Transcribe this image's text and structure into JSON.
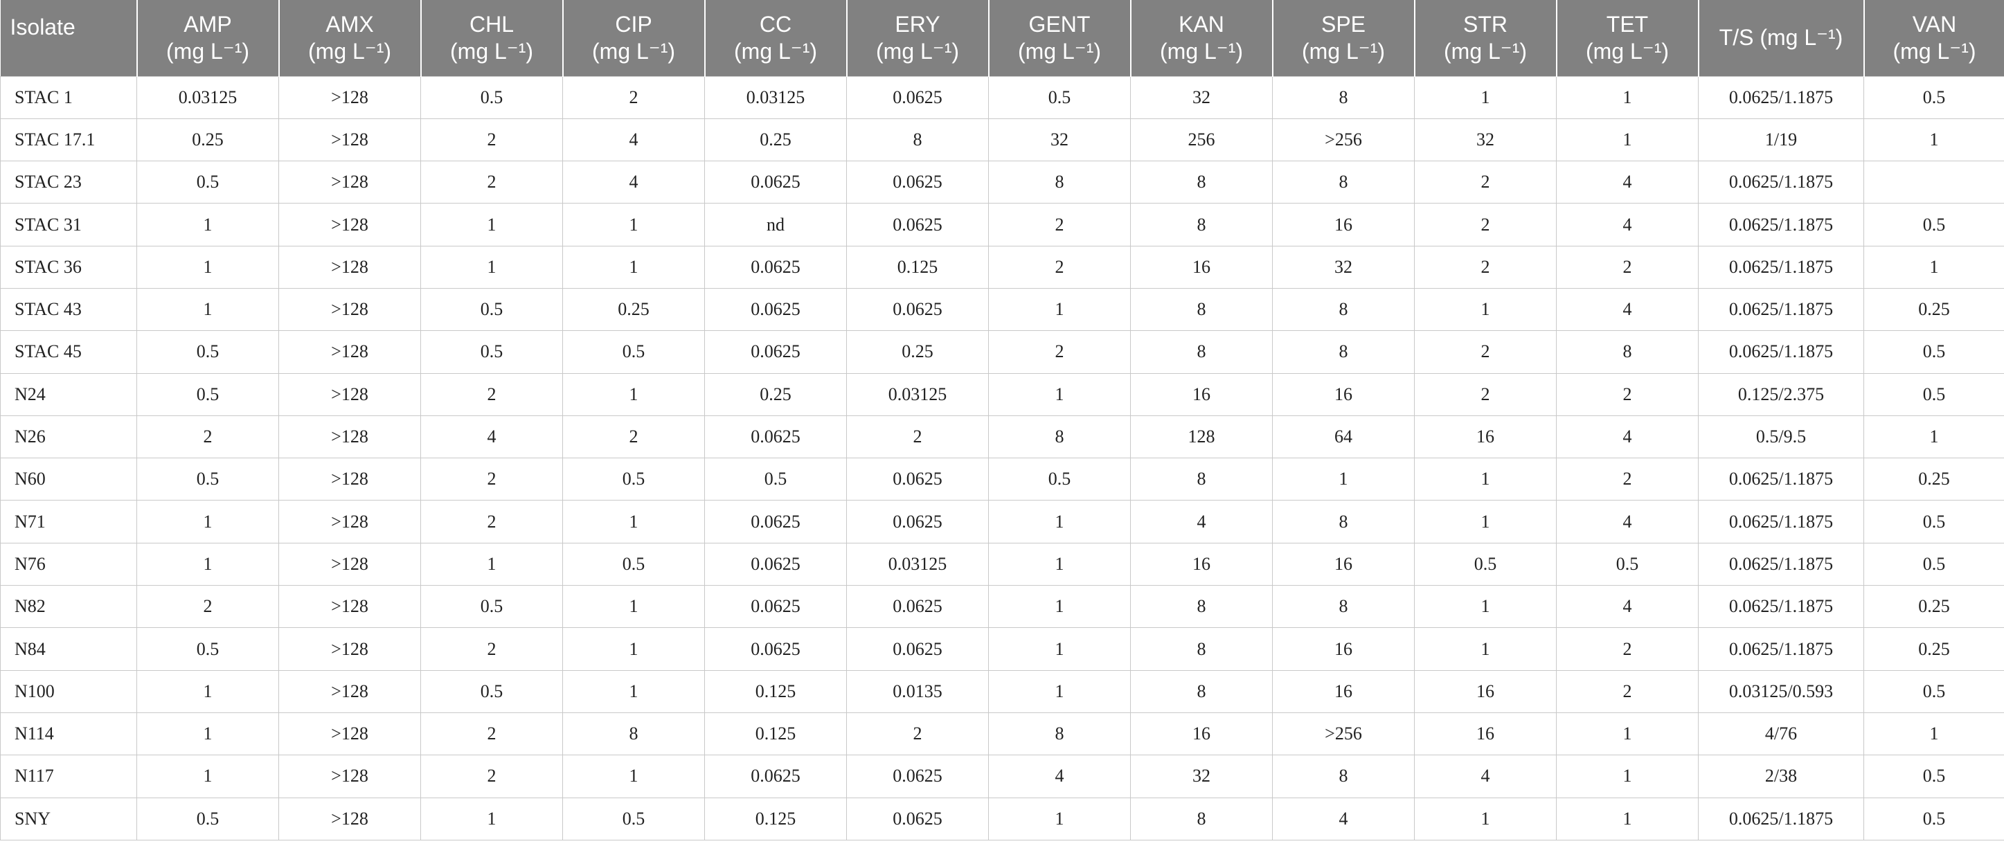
{
  "table": {
    "columns": [
      {
        "name": "Isolate",
        "unit": ""
      },
      {
        "name": "AMP",
        "unit": "(mg L⁻¹)"
      },
      {
        "name": "AMX",
        "unit": "(mg L⁻¹)"
      },
      {
        "name": "CHL",
        "unit": "(mg L⁻¹)"
      },
      {
        "name": "CIP",
        "unit": "(mg L⁻¹)"
      },
      {
        "name": "CC",
        "unit": "(mg L⁻¹)"
      },
      {
        "name": "ERY",
        "unit": "(mg L⁻¹)"
      },
      {
        "name": "GENT",
        "unit": "(mg L⁻¹)"
      },
      {
        "name": "KAN",
        "unit": "(mg L⁻¹)"
      },
      {
        "name": "SPE",
        "unit": "(mg L⁻¹)"
      },
      {
        "name": "STR",
        "unit": "(mg L⁻¹)"
      },
      {
        "name": "TET",
        "unit": "(mg L⁻¹)"
      },
      {
        "name": "T/S (mg L⁻¹)",
        "unit": ""
      },
      {
        "name": "VAN",
        "unit": "(mg L⁻¹)"
      }
    ],
    "rows": [
      [
        "STAC 1",
        "0.03125",
        ">128",
        "0.5",
        "2",
        "0.03125",
        "0.0625",
        "0.5",
        "32",
        "8",
        "1",
        "1",
        "0.0625/1.1875",
        "0.5"
      ],
      [
        "STAC 17.1",
        "0.25",
        ">128",
        "2",
        "4",
        "0.25",
        "8",
        "32",
        "256",
        ">256",
        "32",
        "1",
        "1/19",
        "1"
      ],
      [
        "STAC 23",
        "0.5",
        ">128",
        "2",
        "4",
        "0.0625",
        "0.0625",
        "8",
        "8",
        "8",
        "2",
        "4",
        "0.0625/1.1875",
        ""
      ],
      [
        "STAC 31",
        "1",
        ">128",
        "1",
        "1",
        "nd",
        "0.0625",
        "2",
        "8",
        "16",
        "2",
        "4",
        "0.0625/1.1875",
        "0.5"
      ],
      [
        "STAC 36",
        "1",
        ">128",
        "1",
        "1",
        "0.0625",
        "0.125",
        "2",
        "16",
        "32",
        "2",
        "2",
        "0.0625/1.1875",
        "1"
      ],
      [
        "STAC 43",
        "1",
        ">128",
        "0.5",
        "0.25",
        "0.0625",
        "0.0625",
        "1",
        "8",
        "8",
        "1",
        "4",
        "0.0625/1.1875",
        "0.25"
      ],
      [
        "STAC 45",
        "0.5",
        ">128",
        "0.5",
        "0.5",
        "0.0625",
        "0.25",
        "2",
        "8",
        "8",
        "2",
        "8",
        "0.0625/1.1875",
        "0.5"
      ],
      [
        "N24",
        "0.5",
        ">128",
        "2",
        "1",
        "0.25",
        "0.03125",
        "1",
        "16",
        "16",
        "2",
        "2",
        "0.125/2.375",
        "0.5"
      ],
      [
        "N26",
        "2",
        ">128",
        "4",
        "2",
        "0.0625",
        "2",
        "8",
        "128",
        "64",
        "16",
        "4",
        "0.5/9.5",
        "1"
      ],
      [
        "N60",
        "0.5",
        ">128",
        "2",
        "0.5",
        "0.5",
        "0.0625",
        "0.5",
        "8",
        "1",
        "1",
        "2",
        "0.0625/1.1875",
        "0.25"
      ],
      [
        "N71",
        "1",
        ">128",
        "2",
        "1",
        "0.0625",
        "0.0625",
        "1",
        "4",
        "8",
        "1",
        "4",
        "0.0625/1.1875",
        "0.5"
      ],
      [
        "N76",
        "1",
        ">128",
        "1",
        "0.5",
        "0.0625",
        "0.03125",
        "1",
        "16",
        "16",
        "0.5",
        "0.5",
        "0.0625/1.1875",
        "0.5"
      ],
      [
        "N82",
        "2",
        ">128",
        "0.5",
        "1",
        "0.0625",
        "0.0625",
        "1",
        "8",
        "8",
        "1",
        "4",
        "0.0625/1.1875",
        "0.25"
      ],
      [
        "N84",
        "0.5",
        ">128",
        "2",
        "1",
        "0.0625",
        "0.0625",
        "1",
        "8",
        "16",
        "1",
        "2",
        "0.0625/1.1875",
        "0.25"
      ],
      [
        "N100",
        "1",
        ">128",
        "0.5",
        "1",
        "0.125",
        "0.0135",
        "1",
        "8",
        "16",
        "16",
        "2",
        "0.03125/0.593",
        "0.5"
      ],
      [
        "N114",
        "1",
        ">128",
        "2",
        "8",
        "0.125",
        "2",
        "8",
        "16",
        ">256",
        "16",
        "1",
        "4/76",
        "1"
      ],
      [
        "N117",
        "1",
        ">128",
        "2",
        "1",
        "0.0625",
        "0.0625",
        "4",
        "32",
        "8",
        "4",
        "1",
        "2/38",
        "0.5"
      ],
      [
        "SNY",
        "0.5",
        ">128",
        "1",
        "0.5",
        "0.125",
        "0.0625",
        "1",
        "8",
        "4",
        "1",
        "1",
        "0.0625/1.1875",
        "0.5"
      ]
    ]
  }
}
